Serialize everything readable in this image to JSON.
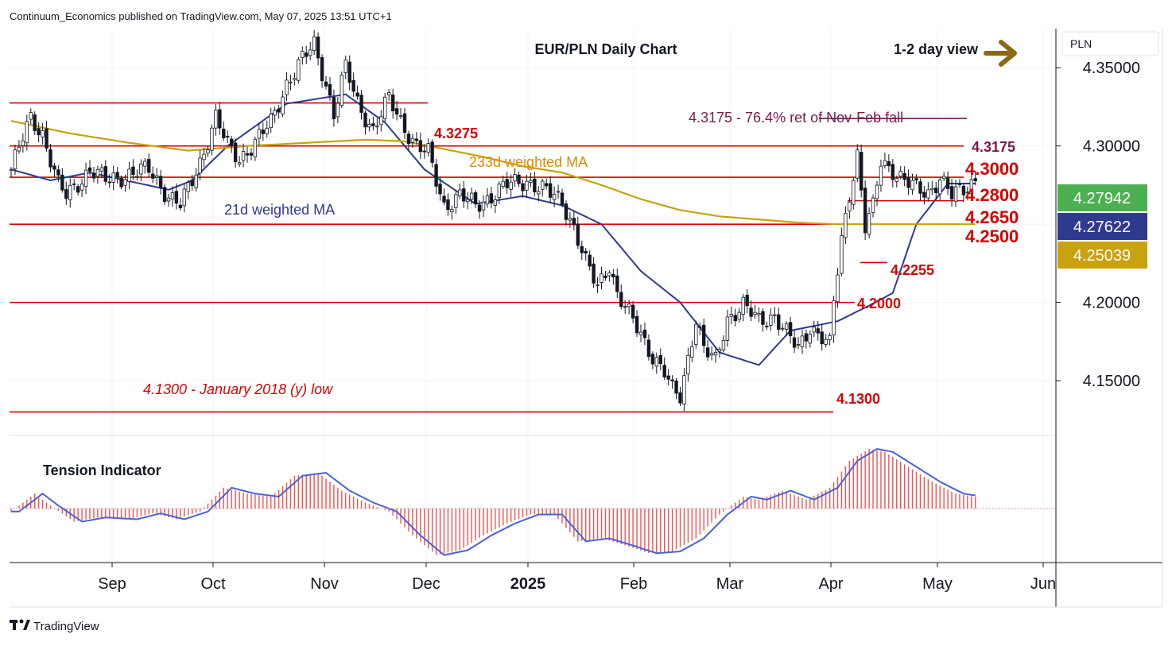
{
  "header": {
    "publisher": "Continuum_Economics published on TradingView.com, May 07, 2025 13:51 UTC+1"
  },
  "footer": {
    "brand": "TradingView",
    "logo": "tradingview-logo-icon"
  },
  "price_scale": {
    "currency": "PLN"
  },
  "chart_data": [
    {
      "type": "candlestick",
      "title": "EUR/PLN Daily Chart",
      "view_label": "1-2 day view",
      "view_direction": "sideways (right arrow)",
      "arrow_color": "#8b6914",
      "ylim": [
        4.115,
        4.375
      ],
      "y_ticks": [
        "4.35000",
        "4.30000",
        "4.20000",
        "4.15000"
      ],
      "x_ticks": [
        "Sep",
        "Oct",
        "Nov",
        "Dec",
        "2025",
        "Feb",
        "Mar",
        "Apr",
        "May",
        "Jun"
      ],
      "grid": true,
      "price_badges": [
        {
          "value": "4.27942",
          "color": "#4caf50"
        },
        {
          "value": "4.27622",
          "color": "#2f3a8f"
        },
        {
          "value": "4.25039",
          "color": "#c8a20f"
        }
      ],
      "horizontal_levels": [
        {
          "value": 4.3275,
          "label": "4.3275",
          "color": "#d50000"
        },
        {
          "value": 4.3,
          "label": "4.3000",
          "color": "#d50000"
        },
        {
          "value": 4.28,
          "label": "4.2800",
          "color": "#d50000"
        },
        {
          "value": 4.265,
          "label": "4.2650",
          "color": "#d50000"
        },
        {
          "value": 4.25,
          "label": "4.2500",
          "color": "#d50000"
        },
        {
          "value": 4.2255,
          "label": "4.2255",
          "color": "#d50000"
        },
        {
          "value": 4.2,
          "label": "4.2000",
          "color": "#d50000"
        },
        {
          "value": 4.13,
          "label": "4.1300",
          "color": "#d50000"
        },
        {
          "value": 4.3175,
          "label": "4.3175",
          "color": "#7b1a4e"
        }
      ],
      "annotations": [
        {
          "text": "4.3175 - 76.4% ret of Nov-Feb fall",
          "color": "#7b1a4e"
        },
        {
          "text": "4.1300 - January 2018 (y) low",
          "color": "#d50000"
        },
        {
          "text": "233d weighted MA",
          "color": "#e08a00"
        },
        {
          "text": "21d weighted MA",
          "color": "#2f3a8f"
        }
      ],
      "series": [
        {
          "name": "21d weighted MA",
          "color": "#2f3a8f",
          "anchors": [
            [
              0,
              4.285
            ],
            [
              10,
              4.278
            ],
            [
              20,
              4.283
            ],
            [
              40,
              4.272
            ],
            [
              46,
              4.278
            ],
            [
              55,
              4.3
            ],
            [
              70,
              4.327
            ],
            [
              85,
              4.333
            ],
            [
              95,
              4.315
            ],
            [
              105,
              4.285
            ],
            [
              118,
              4.263
            ],
            [
              130,
              4.268
            ],
            [
              140,
              4.262
            ],
            [
              150,
              4.25
            ],
            [
              160,
              4.22
            ],
            [
              170,
              4.2
            ],
            [
              180,
              4.168
            ],
            [
              190,
              4.16
            ],
            [
              198,
              4.182
            ],
            [
              210,
              4.188
            ],
            [
              218,
              4.198
            ],
            [
              224,
              4.206
            ],
            [
              230,
              4.25
            ],
            [
              238,
              4.276
            ],
            [
              245,
              4.276
            ]
          ]
        },
        {
          "name": "233d weighted MA",
          "color": "#c8a20f",
          "anchors": [
            [
              0,
              4.316
            ],
            [
              15,
              4.308
            ],
            [
              30,
              4.302
            ],
            [
              45,
              4.297
            ],
            [
              60,
              4.3
            ],
            [
              75,
              4.302
            ],
            [
              90,
              4.304
            ],
            [
              100,
              4.303
            ],
            [
              110,
              4.298
            ],
            [
              120,
              4.293
            ],
            [
              130,
              4.287
            ],
            [
              140,
              4.283
            ],
            [
              150,
              4.275
            ],
            [
              160,
              4.266
            ],
            [
              170,
              4.259
            ],
            [
              180,
              4.255
            ],
            [
              190,
              4.253
            ],
            [
              200,
              4.251
            ],
            [
              210,
              4.25
            ],
            [
              220,
              4.25
            ],
            [
              230,
              4.25
            ],
            [
              245,
              4.25
            ]
          ]
        }
      ],
      "candles": {
        "count": 246,
        "anchors": [
          [
            0,
            4.285
          ],
          [
            5,
            4.318
          ],
          [
            8,
            4.308
          ],
          [
            12,
            4.275
          ],
          [
            14,
            4.268
          ],
          [
            20,
            4.285
          ],
          [
            24,
            4.278
          ],
          [
            30,
            4.282
          ],
          [
            35,
            4.285
          ],
          [
            40,
            4.268
          ],
          [
            43,
            4.262
          ],
          [
            45,
            4.272
          ],
          [
            48,
            4.29
          ],
          [
            52,
            4.318
          ],
          [
            55,
            4.3
          ],
          [
            58,
            4.292
          ],
          [
            62,
            4.302
          ],
          [
            66,
            4.315
          ],
          [
            70,
            4.34
          ],
          [
            74,
            4.355
          ],
          [
            77,
            4.365
          ],
          [
            80,
            4.34
          ],
          [
            82,
            4.32
          ],
          [
            85,
            4.35
          ],
          [
            88,
            4.328
          ],
          [
            92,
            4.31
          ],
          [
            96,
            4.33
          ],
          [
            100,
            4.312
          ],
          [
            103,
            4.3
          ],
          [
            106,
            4.295
          ],
          [
            110,
            4.262
          ],
          [
            114,
            4.268
          ],
          [
            118,
            4.262
          ],
          [
            122,
            4.268
          ],
          [
            126,
            4.275
          ],
          [
            131,
            4.278
          ],
          [
            135,
            4.272
          ],
          [
            140,
            4.265
          ],
          [
            143,
            4.248
          ],
          [
            146,
            4.225
          ],
          [
            149,
            4.21
          ],
          [
            152,
            4.225
          ],
          [
            154,
            4.205
          ],
          [
            157,
            4.192
          ],
          [
            160,
            4.18
          ],
          [
            163,
            4.166
          ],
          [
            166,
            4.155
          ],
          [
            168,
            4.143
          ],
          [
            170,
            4.14
          ],
          [
            172,
            4.165
          ],
          [
            174,
            4.19
          ],
          [
            176,
            4.17
          ],
          [
            179,
            4.162
          ],
          [
            182,
            4.19
          ],
          [
            186,
            4.198
          ],
          [
            190,
            4.188
          ],
          [
            194,
            4.192
          ],
          [
            197,
            4.18
          ],
          [
            200,
            4.17
          ],
          [
            203,
            4.185
          ],
          [
            206,
            4.178
          ],
          [
            208,
            4.172
          ],
          [
            209,
            4.2
          ],
          [
            211,
            4.24
          ],
          [
            213,
            4.27
          ],
          [
            215,
            4.295
          ],
          [
            217,
            4.248
          ],
          [
            219,
            4.26
          ],
          [
            221,
            4.29
          ],
          [
            224,
            4.285
          ],
          [
            227,
            4.278
          ],
          [
            230,
            4.272
          ],
          [
            233,
            4.27
          ],
          [
            236,
            4.28
          ],
          [
            239,
            4.268
          ],
          [
            242,
            4.272
          ],
          [
            245,
            4.279
          ]
        ]
      },
      "tension_indicator": {
        "label": "Tension Indicator",
        "bar_color": "#ef5350",
        "line_color": "#4a63d6",
        "range": [
          -1,
          1
        ],
        "anchors": [
          [
            0,
            -0.05
          ],
          [
            6,
            0.25
          ],
          [
            10,
            0.05
          ],
          [
            16,
            -0.22
          ],
          [
            22,
            -0.15
          ],
          [
            30,
            -0.18
          ],
          [
            36,
            -0.08
          ],
          [
            42,
            -0.18
          ],
          [
            48,
            -0.05
          ],
          [
            54,
            0.35
          ],
          [
            60,
            0.25
          ],
          [
            66,
            0.2
          ],
          [
            72,
            0.55
          ],
          [
            78,
            0.6
          ],
          [
            84,
            0.3
          ],
          [
            90,
            0.1
          ],
          [
            96,
            -0.05
          ],
          [
            102,
            -0.45
          ],
          [
            108,
            -0.78
          ],
          [
            114,
            -0.7
          ],
          [
            120,
            -0.45
          ],
          [
            126,
            -0.25
          ],
          [
            132,
            -0.1
          ],
          [
            138,
            -0.1
          ],
          [
            144,
            -0.55
          ],
          [
            150,
            -0.5
          ],
          [
            156,
            -0.62
          ],
          [
            162,
            -0.75
          ],
          [
            168,
            -0.72
          ],
          [
            174,
            -0.5
          ],
          [
            180,
            -0.1
          ],
          [
            186,
            0.2
          ],
          [
            190,
            0.15
          ],
          [
            196,
            0.3
          ],
          [
            202,
            0.15
          ],
          [
            208,
            0.35
          ],
          [
            213,
            0.8
          ],
          [
            218,
            1.0
          ],
          [
            222,
            0.95
          ],
          [
            228,
            0.7
          ],
          [
            234,
            0.45
          ],
          [
            240,
            0.25
          ],
          [
            245,
            0.2
          ]
        ]
      }
    }
  ]
}
